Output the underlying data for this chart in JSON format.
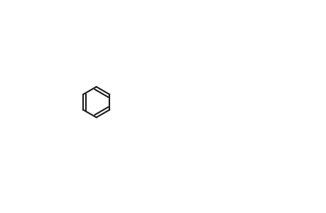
{
  "title": "",
  "bg_color": "#ffffff",
  "line_color": "#1a1a1a",
  "line_width": 1.5,
  "font_size": 10,
  "fig_width": 4.6,
  "fig_height": 3.0,
  "dpi": 100
}
